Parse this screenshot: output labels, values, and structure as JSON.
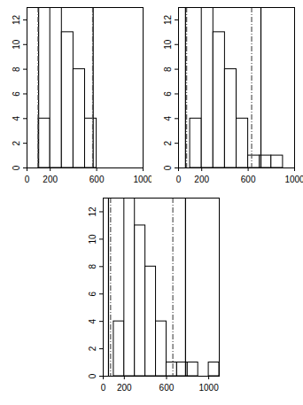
{
  "chart_data": [
    {
      "type": "histogram",
      "bins": [
        100,
        200,
        300,
        400,
        500,
        600
      ],
      "counts": [
        4,
        13,
        11,
        8,
        4
      ],
      "xlim": [
        0,
        1000
      ],
      "ylim": [
        0,
        13
      ],
      "xticks": [
        0,
        200,
        600,
        1000
      ],
      "yticks": [
        0,
        2,
        4,
        6,
        8,
        10,
        12
      ],
      "color": "#ffffff",
      "lines": [
        {
          "value": 100,
          "line_style": "solid"
        },
        {
          "value": 570,
          "line_style": "solid"
        },
        {
          "value": 95,
          "line_style": "dashdot"
        },
        {
          "value": 565,
          "line_style": "dashdot"
        }
      ]
    },
    {
      "type": "histogram",
      "bins": [
        100,
        200,
        300,
        400,
        500,
        600,
        700,
        800,
        900
      ],
      "counts": [
        4,
        13,
        11,
        8,
        4,
        1,
        1,
        1
      ],
      "xlim": [
        0,
        1000
      ],
      "ylim": [
        0,
        13
      ],
      "xticks": [
        0,
        200,
        600,
        1000
      ],
      "yticks": [
        0,
        2,
        4,
        6,
        8,
        10,
        12
      ],
      "color": "#ffffff",
      "lines": [
        {
          "value": 60,
          "line_style": "solid"
        },
        {
          "value": 710,
          "line_style": "solid"
        },
        {
          "value": 70,
          "line_style": "dashdot"
        },
        {
          "value": 630,
          "line_style": "dashdot"
        }
      ]
    },
    {
      "type": "histogram",
      "bins": [
        100,
        200,
        300,
        400,
        500,
        600,
        700,
        800,
        900,
        1000,
        1100
      ],
      "counts": [
        4,
        13,
        11,
        8,
        4,
        1,
        1,
        1,
        0,
        1
      ],
      "xlim": [
        0,
        1100
      ],
      "ylim": [
        0,
        13
      ],
      "xticks": [
        0,
        200,
        600,
        1000
      ],
      "yticks": [
        0,
        2,
        4,
        6,
        8,
        10,
        12
      ],
      "color": "#ffffff",
      "lines": [
        {
          "value": 50,
          "line_style": "solid"
        },
        {
          "value": 780,
          "line_style": "solid"
        },
        {
          "value": 70,
          "line_style": "dashdot"
        },
        {
          "value": 660,
          "line_style": "dashdot"
        }
      ]
    }
  ]
}
